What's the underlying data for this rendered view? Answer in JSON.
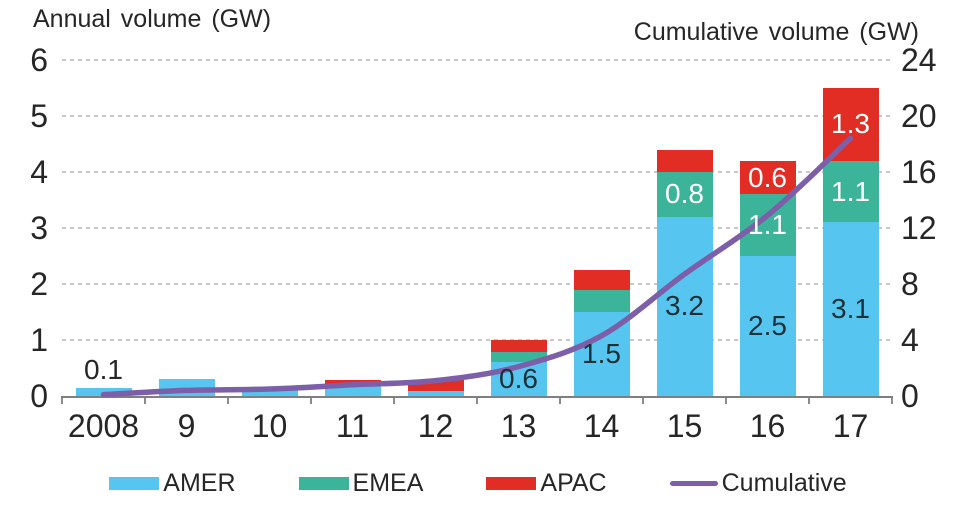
{
  "titles": {
    "left_axis": "Annual volume (GW)",
    "right_axis": "Cumulative volume (GW)"
  },
  "chart_data": {
    "type": "combo: stacked bar (left axis) + line (right axis)",
    "categories": [
      "2008",
      "9",
      "10",
      "11",
      "12",
      "13",
      "14",
      "15",
      "16",
      "17"
    ],
    "left_axis": {
      "title": "Annual volume (GW)",
      "range": [
        0,
        6
      ],
      "ticks": [
        0,
        1,
        2,
        3,
        4,
        5,
        6
      ]
    },
    "right_axis": {
      "title": "Cumulative volume (GW)",
      "range": [
        0,
        24
      ],
      "ticks": [
        0,
        4,
        8,
        12,
        16,
        20,
        24
      ]
    },
    "grid": "horizontal dashed",
    "bar_series": [
      {
        "name": "AMER",
        "color": "#56C5F0",
        "label_color": "#1C3038",
        "values": [
          0.15,
          0.3,
          0.12,
          0.2,
          0.09,
          0.6,
          1.5,
          3.2,
          2.5,
          3.1
        ],
        "labels": [
          "",
          "",
          "",
          "",
          "",
          "0.6",
          "1.5",
          "3.2",
          "2.5",
          "3.1"
        ]
      },
      {
        "name": "EMEA",
        "color": "#3CB49A",
        "label_color": "#FFFFFF",
        "values": [
          0,
          0,
          0,
          0,
          0,
          0.18,
          0.4,
          0.8,
          1.1,
          1.1
        ],
        "labels": [
          "",
          "",
          "",
          "",
          "",
          "",
          "",
          "0.8",
          "1.1",
          "1.1"
        ]
      },
      {
        "name": "APAC",
        "color": "#E12D24",
        "label_color": "#FFFFFF",
        "values": [
          0,
          0,
          0,
          0.08,
          0.2,
          0.22,
          0.35,
          0.4,
          0.6,
          1.3
        ],
        "labels": [
          "",
          "",
          "",
          "",
          "",
          "",
          "",
          "",
          "0.6",
          "1.3"
        ]
      }
    ],
    "outside_labels": [
      "0.1",
      "",
      "",
      "",
      "",
      "",
      "",
      "",
      "",
      ""
    ],
    "outside_label_color": "#262626",
    "line_series": {
      "name": "Cumulative",
      "axis": "right",
      "color": "#7C5FA8",
      "values": [
        0.1,
        0.4,
        0.5,
        0.8,
        1.1,
        2.1,
        4.3,
        8.7,
        12.9,
        18.4
      ]
    },
    "grid_color": "#C8C8C8",
    "axis_color": "#7F7F7F"
  },
  "legend": {
    "items": [
      {
        "label": "AMER",
        "marker": "rect",
        "color": "#56C5F0"
      },
      {
        "label": "EMEA",
        "marker": "rect",
        "color": "#3CB49A"
      },
      {
        "label": "APAC",
        "marker": "rect",
        "color": "#E12D24"
      },
      {
        "label": "Cumulative",
        "marker": "line",
        "color": "#7C5FA8"
      }
    ]
  }
}
